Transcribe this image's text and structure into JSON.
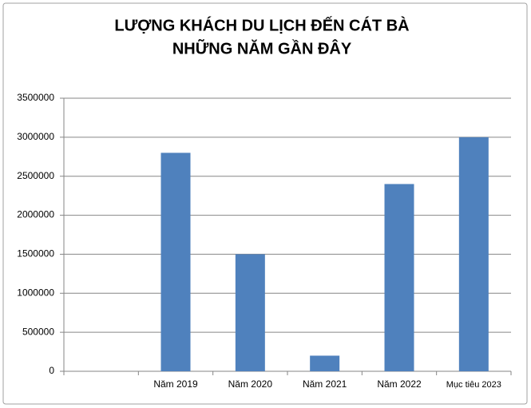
{
  "chart_data": {
    "type": "bar",
    "title": [
      "LƯỢNG KHÁCH DU LỊCH ĐẾN CÁT BÀ",
      "NHỮNG NĂM GẦN ĐÂY"
    ],
    "categories": [
      null,
      "Năm 2019",
      "Năm 2020",
      "Năm 2021",
      "Năm 2022",
      "Mục tiêu 2023"
    ],
    "values": [
      null,
      2800000,
      1500000,
      200000,
      2400000,
      3000000
    ],
    "color": "#4f81bd",
    "ylim": [
      0,
      3500000
    ],
    "yticks": [
      0,
      500000,
      1000000,
      1500000,
      2000000,
      2500000,
      3000000,
      3500000
    ],
    "grid": true
  }
}
